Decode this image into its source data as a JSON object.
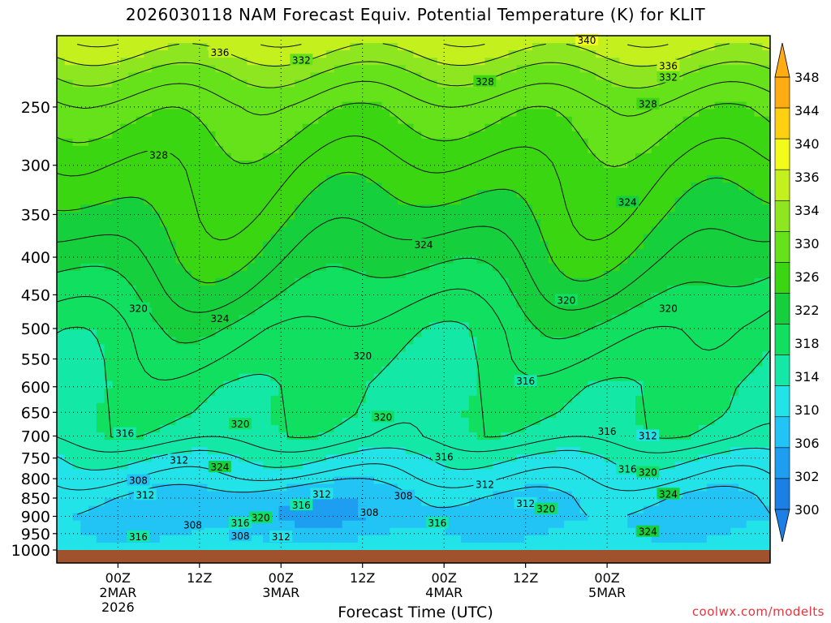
{
  "title": "2026030118 NAM Forecast Equiv. Potential Temperature (K) for KLIT",
  "credit": "coolwx.com/modelts",
  "chart_data": {
    "type": "heatmap",
    "title": "2026030118 NAM Forecast Equiv. Potential Temperature (K) for KLIT",
    "xlabel": "Forecast Time (UTC)",
    "ylabel": "",
    "y_scale": "log-pressure",
    "ylim": [
      1000,
      200
    ],
    "yticks": [
      250,
      300,
      350,
      400,
      450,
      500,
      550,
      600,
      650,
      700,
      750,
      800,
      850,
      900,
      950,
      1000
    ],
    "xlim_hours": [
      -9,
      96
    ],
    "xticks": [
      {
        "hour": 0,
        "lines": [
          "00Z",
          "2MAR",
          "2026"
        ]
      },
      {
        "hour": 12,
        "lines": [
          "12Z"
        ]
      },
      {
        "hour": 24,
        "lines": [
          "00Z",
          "3MAR"
        ]
      },
      {
        "hour": 36,
        "lines": [
          "12Z"
        ]
      },
      {
        "hour": 48,
        "lines": [
          "00Z",
          "4MAR"
        ]
      },
      {
        "hour": 60,
        "lines": [
          "12Z"
        ]
      },
      {
        "hour": 72,
        "lines": [
          "00Z",
          "5MAR"
        ]
      }
    ],
    "grid": true,
    "colorbar": {
      "placement": "right",
      "labels": [
        300,
        302,
        306,
        310,
        314,
        318,
        322,
        326,
        330,
        334,
        336,
        340,
        344,
        348
      ],
      "bands": [
        {
          "min": 298,
          "max": 302,
          "color": "#1b7fe6"
        },
        {
          "min": 302,
          "max": 306,
          "color": "#1e9ef0"
        },
        {
          "min": 306,
          "max": 310,
          "color": "#22c4f6"
        },
        {
          "min": 310,
          "max": 314,
          "color": "#22e3e8"
        },
        {
          "min": 314,
          "max": 318,
          "color": "#14e8a6"
        },
        {
          "min": 318,
          "max": 322,
          "color": "#10df60"
        },
        {
          "min": 322,
          "max": 326,
          "color": "#16cf3c"
        },
        {
          "min": 326,
          "max": 330,
          "color": "#3ad612"
        },
        {
          "min": 330,
          "max": 334,
          "color": "#66e21a"
        },
        {
          "min": 334,
          "max": 336,
          "color": "#8ee620"
        },
        {
          "min": 336,
          "max": 340,
          "color": "#c4f01e"
        },
        {
          "min": 340,
          "max": 344,
          "color": "#f3fb1a"
        },
        {
          "min": 344,
          "max": 348,
          "color": "#ffd012"
        },
        {
          "min": 348,
          "max": 352,
          "color": "#ffac14"
        }
      ]
    },
    "profiles": [
      {
        "pressure": 200,
        "theta_e": 338
      },
      {
        "pressure": 225,
        "theta_e": 334
      },
      {
        "pressure": 250,
        "theta_e": 331
      },
      {
        "pressure": 300,
        "theta_e": 328
      },
      {
        "pressure": 350,
        "theta_e": 326
      },
      {
        "pressure": 400,
        "theta_e": 324
      },
      {
        "pressure": 450,
        "theta_e": 322
      },
      {
        "pressure": 500,
        "theta_e": 320
      },
      {
        "pressure": 550,
        "theta_e": 319
      },
      {
        "pressure": 600,
        "theta_e": 318
      },
      {
        "pressure": 650,
        "theta_e": 318
      },
      {
        "pressure": 700,
        "theta_e": 317
      },
      {
        "pressure": 750,
        "theta_e": 314
      },
      {
        "pressure": 800,
        "theta_e": 312
      },
      {
        "pressure": 850,
        "theta_e": 310
      },
      {
        "pressure": 900,
        "theta_e": 309
      },
      {
        "pressure": 950,
        "theta_e": 310
      },
      {
        "pressure": 1000,
        "theta_e": 312
      }
    ],
    "contour_labels": [
      {
        "text": "340",
        "hour": 69,
        "pressure": 203
      },
      {
        "text": "336",
        "hour": 15,
        "pressure": 211
      },
      {
        "text": "332",
        "hour": 27,
        "pressure": 216
      },
      {
        "text": "336",
        "hour": 81,
        "pressure": 220
      },
      {
        "text": "332",
        "hour": 81,
        "pressure": 228
      },
      {
        "text": "328",
        "hour": 54,
        "pressure": 231
      },
      {
        "text": "328",
        "hour": 78,
        "pressure": 248
      },
      {
        "text": "328",
        "hour": 6,
        "pressure": 291
      },
      {
        "text": "324",
        "hour": 75,
        "pressure": 337
      },
      {
        "text": "324",
        "hour": 45,
        "pressure": 385
      },
      {
        "text": "320",
        "hour": 66,
        "pressure": 458
      },
      {
        "text": "320",
        "hour": 3,
        "pressure": 470
      },
      {
        "text": "324",
        "hour": 15,
        "pressure": 485
      },
      {
        "text": "320",
        "hour": 81,
        "pressure": 470
      },
      {
        "text": "320",
        "hour": 36,
        "pressure": 545
      },
      {
        "text": "316",
        "hour": 60,
        "pressure": 590
      },
      {
        "text": "320",
        "hour": 39,
        "pressure": 660
      },
      {
        "text": "320",
        "hour": 18,
        "pressure": 675
      },
      {
        "text": "316",
        "hour": 72,
        "pressure": 690
      },
      {
        "text": "316",
        "hour": 1,
        "pressure": 695
      },
      {
        "text": "312",
        "hour": 78,
        "pressure": 700
      },
      {
        "text": "312",
        "hour": 9,
        "pressure": 755
      },
      {
        "text": "316",
        "hour": 48,
        "pressure": 748
      },
      {
        "text": "324",
        "hour": 15,
        "pressure": 772
      },
      {
        "text": "316",
        "hour": 75,
        "pressure": 777
      },
      {
        "text": "320",
        "hour": 78,
        "pressure": 785
      },
      {
        "text": "308",
        "hour": 3,
        "pressure": 805
      },
      {
        "text": "312",
        "hour": 54,
        "pressure": 815
      },
      {
        "text": "324",
        "hour": 81,
        "pressure": 840
      },
      {
        "text": "312",
        "hour": 4,
        "pressure": 842
      },
      {
        "text": "312",
        "hour": 30,
        "pressure": 840
      },
      {
        "text": "308",
        "hour": 42,
        "pressure": 845
      },
      {
        "text": "316",
        "hour": 27,
        "pressure": 870
      },
      {
        "text": "312",
        "hour": 60,
        "pressure": 865
      },
      {
        "text": "320",
        "hour": 63,
        "pressure": 880
      },
      {
        "text": "308",
        "hour": 37,
        "pressure": 890
      },
      {
        "text": "320",
        "hour": 21,
        "pressure": 905
      },
      {
        "text": "316",
        "hour": 47,
        "pressure": 920
      },
      {
        "text": "308",
        "hour": 11,
        "pressure": 925
      },
      {
        "text": "316",
        "hour": 18,
        "pressure": 920
      },
      {
        "text": "324",
        "hour": 78,
        "pressure": 945
      },
      {
        "text": "316",
        "hour": 3,
        "pressure": 960
      },
      {
        "text": "308",
        "hour": 18,
        "pressure": 958
      },
      {
        "text": "312",
        "hour": 24,
        "pressure": 960
      }
    ]
  },
  "icons": {
    "colorbar_up": "triangle-up-icon",
    "colorbar_down": "triangle-down-icon"
  }
}
